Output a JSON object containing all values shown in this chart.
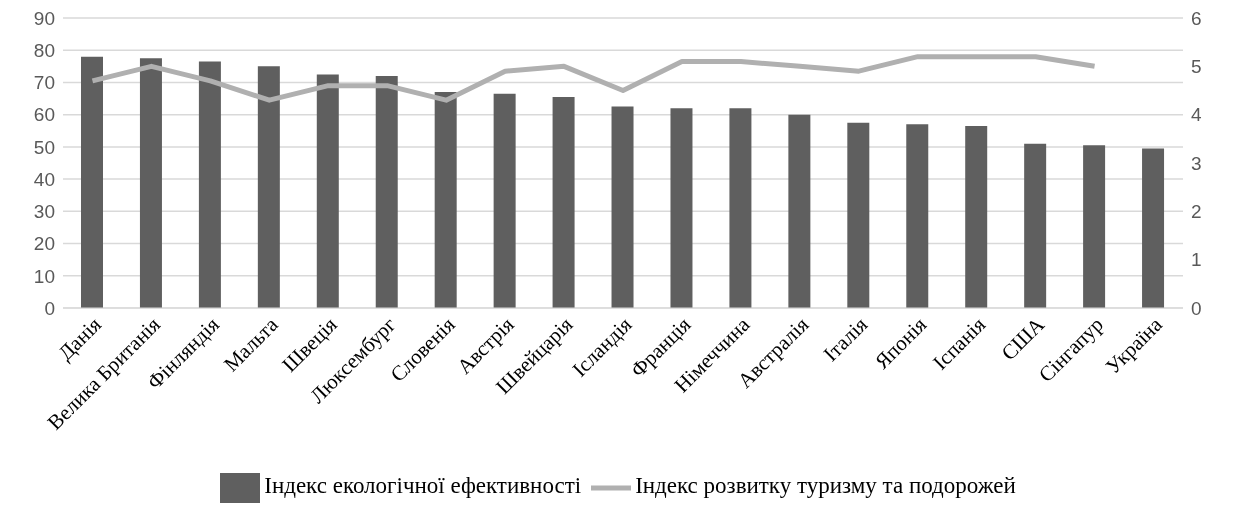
{
  "chart_data": {
    "type": "bar",
    "categories": [
      "Данія",
      "Велика Британія",
      "Фінляндія",
      "Мальта",
      "Швеція",
      "Люксембург",
      "Словенія",
      "Австрія",
      "Швейцарія",
      "Ісландія",
      "Франція",
      "Німеччина",
      "Австралія",
      "Італія",
      "Японія",
      "Іспанія",
      "США",
      "Сінгапур",
      "Україна"
    ],
    "series": [
      {
        "name": "Індекс екологічної ефективності",
        "color": "#5f5f5f",
        "values": [
          78,
          77.5,
          76.5,
          75,
          72.5,
          72,
          67,
          66.5,
          65.5,
          62.5,
          62,
          62,
          60,
          57.5,
          57,
          56.5,
          51,
          50.5,
          49.5
        ]
      },
      {
        "name": "Індекс розвитку туризму та подорожей",
        "type": "line",
        "axis": "y2",
        "color": "#b0b0b0",
        "values": [
          4.7,
          5.0,
          4.7,
          4.3,
          4.6,
          4.6,
          4.3,
          4.9,
          5.0,
          4.5,
          5.1,
          5.1,
          5.0,
          4.9,
          5.2,
          5.2,
          5.2,
          5.0,
          null
        ]
      }
    ],
    "ylim": [
      0,
      90
    ],
    "yticks": [
      0,
      10,
      20,
      30,
      40,
      50,
      60,
      70,
      80,
      90
    ],
    "y2lim": [
      0,
      6
    ],
    "y2ticks": [
      0,
      1,
      2,
      3,
      4,
      5,
      6
    ],
    "grid": "y",
    "legend": "bottom",
    "marker": "none",
    "line_style": "solid"
  }
}
